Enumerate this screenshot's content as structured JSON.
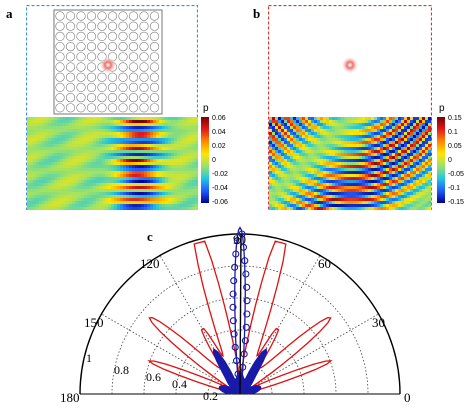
{
  "panels": {
    "a": {
      "letter": "a",
      "colorbar": {
        "label": "p",
        "ticks": [
          "0.06",
          "0.04",
          "0.02",
          "0",
          "-0.02",
          "-0.04",
          "-0.06"
        ]
      }
    },
    "b": {
      "letter": "b",
      "colorbar": {
        "label": "p",
        "ticks": [
          "0.15",
          "0.1",
          "0.05",
          "0",
          "-0.05",
          "-0.1",
          "-0.15"
        ]
      }
    },
    "c": {
      "letter": "c",
      "angle_labels": [
        "0",
        "30",
        "60",
        "90",
        "120",
        "150",
        "180"
      ],
      "radial_labels": [
        "1",
        "0.8",
        "0.6",
        "0.4",
        "0.2"
      ]
    }
  },
  "colors": {
    "frame_a": "#3b8fd9",
    "frame_b": "#e0332a",
    "curve_red": "#e01010",
    "curve_blue": "#1a1aa8"
  }
}
